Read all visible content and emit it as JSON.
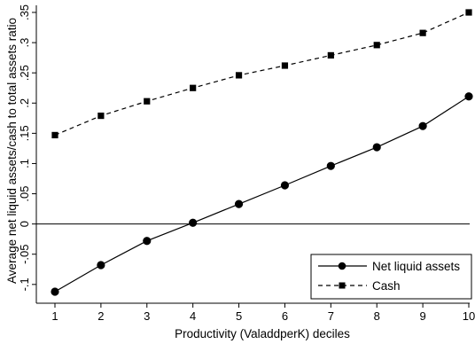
{
  "chart_data": {
    "type": "line",
    "title": "",
    "xlabel": "Productivity (ValaddperK) deciles",
    "ylabel": "Average net liquid assets/cash to total assets ratio",
    "x": [
      1,
      2,
      3,
      4,
      5,
      6,
      7,
      8,
      9,
      10
    ],
    "x_ticks": [
      "1",
      "2",
      "3",
      "4",
      "5",
      "6",
      "7",
      "8",
      "9",
      "10"
    ],
    "y_ticks": [
      {
        "value": -0.1,
        "label": "-.1"
      },
      {
        "value": -0.05,
        "label": "-.05"
      },
      {
        "value": 0,
        "label": "0"
      },
      {
        "value": 0.05,
        "label": ".05"
      },
      {
        "value": 0.1,
        "label": ".1"
      },
      {
        "value": 0.15,
        "label": ".15"
      },
      {
        "value": 0.2,
        "label": ".2"
      },
      {
        "value": 0.25,
        "label": ".25"
      },
      {
        "value": 0.3,
        "label": ".3"
      },
      {
        "value": 0.35,
        "label": ".35"
      }
    ],
    "xlim": [
      1,
      10
    ],
    "ylim": [
      -0.115,
      0.352
    ],
    "reference_line_y": 0,
    "grid": false,
    "legend_position": "bottom-right",
    "series": [
      {
        "name": "Net liquid assets",
        "marker": "circle",
        "line_style": "solid",
        "color": "#000000",
        "values": [
          -0.112,
          -0.068,
          -0.028,
          0.002,
          0.033,
          0.064,
          0.096,
          0.127,
          0.162,
          0.211
        ]
      },
      {
        "name": "Cash",
        "marker": "square",
        "line_style": "dashed",
        "color": "#000000",
        "values": [
          0.147,
          0.179,
          0.203,
          0.225,
          0.246,
          0.262,
          0.279,
          0.296,
          0.316,
          0.35
        ]
      }
    ]
  }
}
